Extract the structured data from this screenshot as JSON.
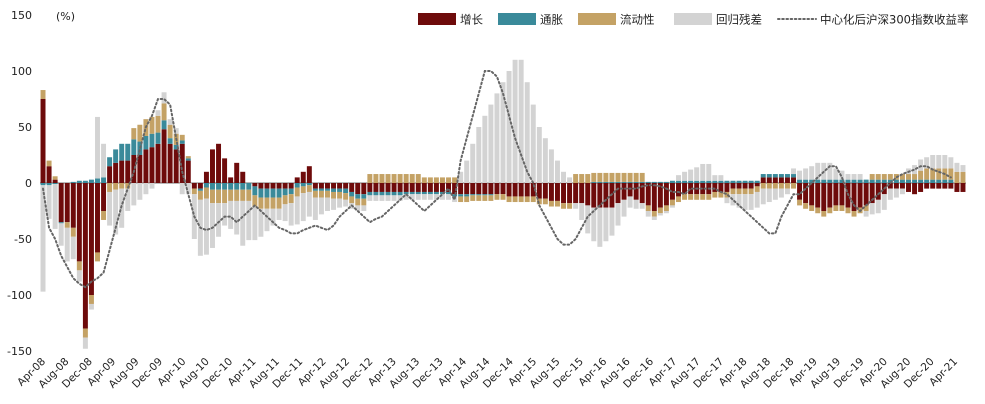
{
  "chart_data": {
    "type": "bar",
    "stacked": true,
    "unit_label": "(%)",
    "ylim": [
      -150,
      150
    ],
    "yticks": [
      150,
      100,
      50,
      0,
      -50,
      -100,
      -150
    ],
    "grid": false,
    "legend_position": "top-right",
    "x_tick_labels": [
      "Apr-08",
      "Aug-08",
      "Dec-08",
      "Apr-09",
      "Aug-09",
      "Dec-09",
      "Apr-10",
      "Aug-10",
      "Dec-10",
      "Apr-11",
      "Aug-11",
      "Dec-11",
      "Apr-12",
      "Aug-12",
      "Dec-12",
      "Apr-13",
      "Aug-13",
      "Dec-13",
      "Apr-14",
      "Aug-14",
      "Dec-14",
      "Apr-15",
      "Aug-15",
      "Dec-15",
      "Apr-16",
      "Aug-16",
      "Dec-16",
      "Apr-17",
      "Aug-17",
      "Dec-17",
      "Apr-18",
      "Aug-18",
      "Dec-18",
      "Apr-19",
      "Aug-19",
      "Dec-19",
      "Apr-20",
      "Aug-20",
      "Dec-20",
      "Apr-21"
    ],
    "colors": {
      "growth": "#6e0b0b",
      "inflation": "#3a8a9a",
      "liquidity": "#c4a265",
      "residual": "#d3d3d3",
      "line": "#666666"
    },
    "series": [
      {
        "name": "增长",
        "key": "growth",
        "values": [
          75,
          15,
          3,
          -35,
          -35,
          -40,
          -70,
          -130,
          -100,
          -62,
          -25,
          15,
          18,
          20,
          20,
          25,
          25,
          30,
          32,
          35,
          48,
          35,
          30,
          35,
          20,
          -5,
          -5,
          10,
          30,
          35,
          22,
          5,
          18,
          10,
          0,
          -3,
          -5,
          -5,
          -5,
          -5,
          -5,
          -5,
          5,
          10,
          15,
          -5,
          -5,
          -5,
          -5,
          -5,
          -5,
          -8,
          -10,
          -10,
          -8,
          -8,
          -8,
          -8,
          -8,
          -8,
          -8,
          -8,
          -8,
          -8,
          -8,
          -8,
          -8,
          -8,
          -10,
          -10,
          -10,
          -10,
          -10,
          -10,
          -10,
          -10,
          -10,
          -12,
          -12,
          -12,
          -12,
          -12,
          -14,
          -14,
          -16,
          -16,
          -18,
          -18,
          -18,
          -18,
          -20,
          -22,
          -22,
          -22,
          -22,
          -18,
          -15,
          -12,
          -15,
          -18,
          -20,
          -25,
          -22,
          -20,
          -15,
          -12,
          -10,
          -10,
          -10,
          -10,
          -10,
          -8,
          -8,
          -8,
          -5,
          -5,
          -5,
          -5,
          -3,
          5,
          5,
          5,
          5,
          5,
          5,
          -15,
          -18,
          -20,
          -22,
          -25,
          -22,
          -20,
          -20,
          -22,
          -25,
          -22,
          -20,
          -18,
          -15,
          -10,
          -5,
          -5,
          -5,
          -8,
          -10,
          -8,
          -5,
          -5,
          -5,
          -5,
          -5,
          -8,
          -8
        ],
        "pos_neg_note": "signed values"
      },
      {
        "name": "通胀",
        "key": "inflation",
        "values": [
          -2,
          -2,
          -1,
          -1,
          0,
          1,
          2,
          2,
          3,
          4,
          5,
          8,
          12,
          15,
          15,
          14,
          12,
          12,
          12,
          10,
          8,
          5,
          4,
          3,
          2,
          0,
          -2,
          -4,
          -6,
          -6,
          -6,
          -6,
          -6,
          -6,
          -6,
          -8,
          -8,
          -8,
          -8,
          -8,
          -6,
          -5,
          -4,
          -3,
          -2,
          -2,
          -2,
          -2,
          -3,
          -3,
          -4,
          -4,
          -4,
          -4,
          -3,
          -3,
          -3,
          -3,
          -3,
          -3,
          -2,
          -2,
          -2,
          -2,
          -2,
          -2,
          -2,
          -2,
          -2,
          -2,
          -2,
          -1,
          -1,
          -1,
          -1,
          0,
          0,
          0,
          0,
          0,
          0,
          0,
          0,
          0,
          0,
          0,
          0,
          0,
          0,
          0,
          0,
          1,
          1,
          1,
          1,
          1,
          1,
          1,
          1,
          1,
          1,
          1,
          1,
          1,
          2,
          2,
          2,
          2,
          2,
          2,
          2,
          2,
          2,
          2,
          2,
          2,
          2,
          2,
          2,
          3,
          3,
          3,
          3,
          3,
          3,
          3,
          3,
          3,
          3,
          3,
          3,
          3,
          3,
          3,
          3,
          3,
          3,
          3,
          3,
          3,
          3,
          3,
          3,
          3,
          3,
          3,
          3,
          3,
          3,
          3,
          3
        ]
      },
      {
        "name": "流动性",
        "key": "liquidity",
        "values": [
          8,
          5,
          3,
          0,
          -5,
          -8,
          -8,
          -8,
          -8,
          -8,
          -8,
          -8,
          -6,
          -5,
          -5,
          10,
          15,
          15,
          15,
          15,
          15,
          12,
          10,
          5,
          2,
          -5,
          -8,
          -10,
          -12,
          -12,
          -12,
          -10,
          -10,
          -10,
          -10,
          -10,
          -10,
          -10,
          -10,
          -10,
          -8,
          -8,
          -8,
          -6,
          -6,
          -6,
          -6,
          -6,
          -6,
          -6,
          -6,
          -6,
          -6,
          -6,
          8,
          8,
          8,
          8,
          8,
          8,
          8,
          8,
          8,
          5,
          5,
          5,
          5,
          5,
          5,
          -5,
          -5,
          -5,
          -5,
          -5,
          -5,
          -5,
          -5,
          -5,
          -5,
          -5,
          -5,
          -5,
          -5,
          -5,
          -5,
          -5,
          -5,
          -5,
          8,
          8,
          8,
          8,
          8,
          8,
          8,
          8,
          8,
          8,
          8,
          8,
          -5,
          -5,
          -5,
          -5,
          -5,
          -5,
          -5,
          -5,
          -5,
          -5,
          -5,
          -5,
          -5,
          -5,
          -5,
          -5,
          -5,
          -5,
          -5,
          -5,
          -5,
          -5,
          -5,
          -5,
          -5,
          -5,
          -5,
          -5,
          -5,
          -5,
          -5,
          -5,
          -5,
          -5,
          -5,
          -5,
          -5,
          5,
          5,
          5,
          5,
          5,
          5,
          5,
          5,
          8,
          10,
          10,
          10,
          10,
          10,
          10,
          10
        ]
      },
      {
        "name": "回归残差",
        "key": "residual",
        "values": [
          -95,
          -30,
          -40,
          -20,
          -30,
          -20,
          -10,
          -10,
          -5,
          55,
          30,
          -30,
          -40,
          -35,
          -20,
          -20,
          -15,
          -10,
          -5,
          5,
          10,
          5,
          5,
          -10,
          -10,
          -40,
          -50,
          -50,
          -40,
          -30,
          -20,
          -25,
          -30,
          -40,
          -35,
          -30,
          -25,
          -20,
          -15,
          -10,
          -15,
          -20,
          -25,
          -25,
          -22,
          -20,
          -15,
          -12,
          -10,
          -8,
          -6,
          -5,
          -5,
          -5,
          -5,
          -5,
          -5,
          -5,
          -5,
          -5,
          -5,
          -5,
          -5,
          -5,
          -5,
          -5,
          -5,
          -5,
          -5,
          10,
          20,
          35,
          50,
          60,
          70,
          80,
          90,
          100,
          110,
          110,
          90,
          70,
          50,
          40,
          30,
          20,
          10,
          5,
          -5,
          -15,
          -25,
          -30,
          -35,
          -30,
          -25,
          -20,
          -15,
          -10,
          -8,
          -5,
          -5,
          -3,
          -2,
          -2,
          -2,
          5,
          8,
          10,
          12,
          15,
          15,
          5,
          5,
          -5,
          -10,
          -12,
          -14,
          -14,
          -14,
          -14,
          -12,
          -10,
          -8,
          -5,
          5,
          8,
          10,
          12,
          15,
          15,
          15,
          10,
          8,
          5,
          5,
          5,
          -5,
          -10,
          -12,
          -14,
          -10,
          -8,
          -5,
          5,
          8,
          10,
          10,
          12,
          12,
          12,
          10,
          8,
          6,
          5
        ]
      }
    ],
    "line_series": {
      "name": "中心化后沪深300指数收益率",
      "key": "line",
      "values": [
        -5,
        -40,
        -50,
        -65,
        -75,
        -85,
        -90,
        -93,
        -88,
        -85,
        -80,
        -60,
        -40,
        -20,
        -5,
        10,
        30,
        50,
        60,
        75,
        75,
        70,
        40,
        10,
        -10,
        -30,
        -40,
        -42,
        -40,
        -35,
        -30,
        -30,
        -35,
        -30,
        -25,
        -20,
        -25,
        -30,
        -35,
        -40,
        -42,
        -45,
        -45,
        -42,
        -40,
        -38,
        -40,
        -42,
        -38,
        -30,
        -25,
        -20,
        -25,
        -30,
        -35,
        -32,
        -30,
        -25,
        -20,
        -15,
        -10,
        -15,
        -20,
        -25,
        -20,
        -15,
        -10,
        -5,
        -15,
        20,
        40,
        60,
        80,
        100,
        100,
        95,
        80,
        60,
        40,
        25,
        10,
        0,
        -20,
        -30,
        -40,
        -50,
        -55,
        -55,
        -50,
        -40,
        -30,
        -25,
        -20,
        -15,
        -10,
        -5,
        -5,
        -5,
        -5,
        -3,
        -2,
        -2,
        -3,
        -5,
        -8,
        -8,
        -10,
        -5,
        -5,
        -5,
        -5,
        -5,
        -8,
        -10,
        -15,
        -20,
        -25,
        -30,
        -35,
        -40,
        -45,
        -45,
        -30,
        -20,
        -10,
        -10,
        -5,
        0,
        5,
        10,
        15,
        15,
        5,
        -10,
        -20,
        -25,
        -20,
        -15,
        -10,
        -5,
        0,
        5,
        8,
        10,
        12,
        15,
        15,
        12,
        10,
        8,
        5
      ]
    }
  },
  "legend": [
    {
      "label": "增长",
      "key": "growth"
    },
    {
      "label": "通胀",
      "key": "inflation"
    },
    {
      "label": "流动性",
      "key": "liquidity"
    },
    {
      "label": "回归残差",
      "key": "residual"
    },
    {
      "label": "中心化后沪深300指数收益率",
      "key": "line"
    }
  ]
}
